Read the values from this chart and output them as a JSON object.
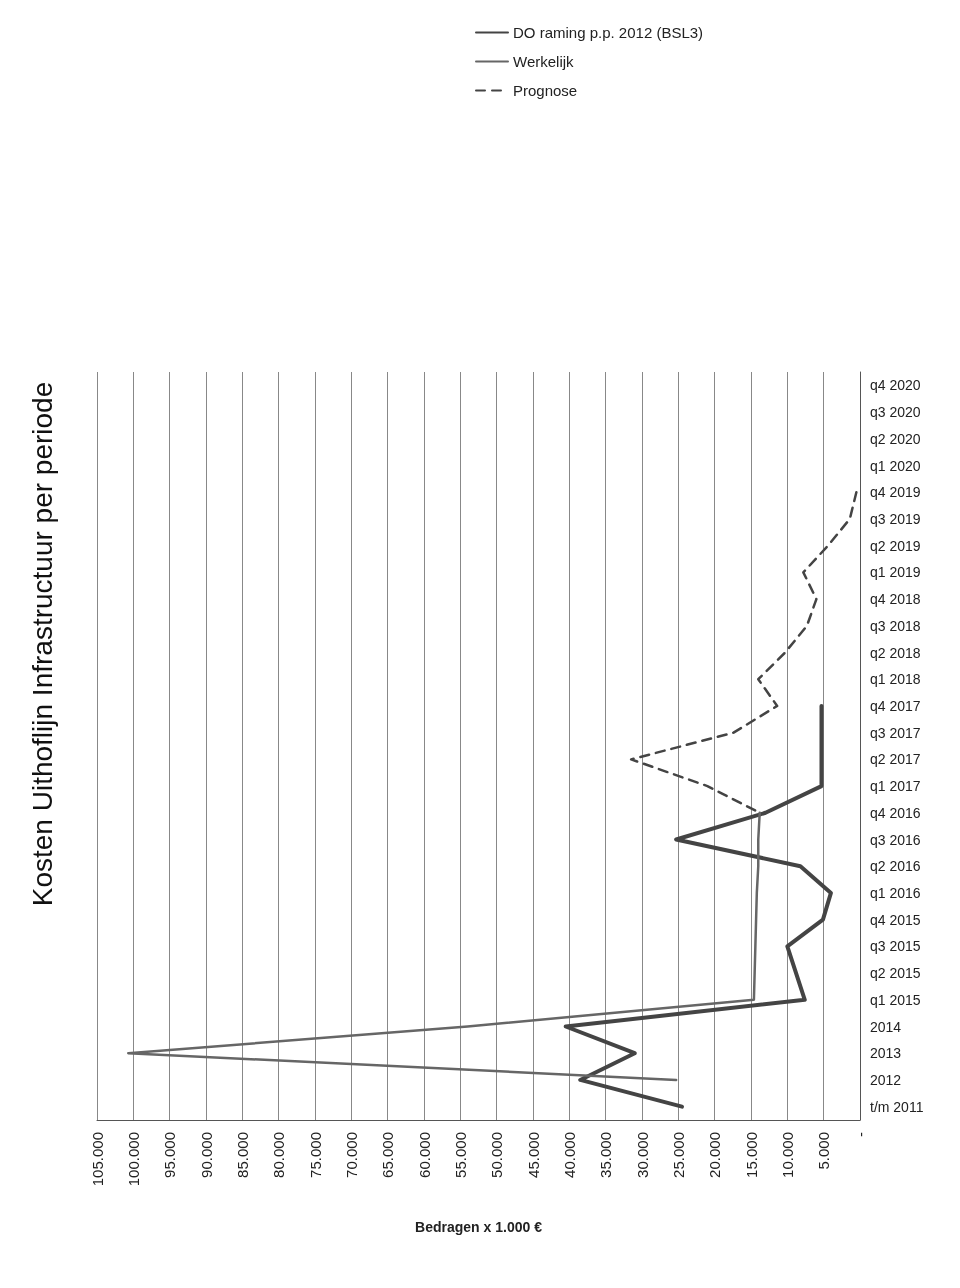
{
  "chart_data": {
    "type": "line",
    "orientation": "horizontal",
    "title": "Kosten Uithoflijn Infrastructuur per periode",
    "xlabel": "Bedragen x 1.000 €",
    "categories": [
      "q4 2020",
      "q3 2020",
      "q2 2020",
      "q1 2020",
      "q4 2019",
      "q3 2019",
      "q2 2019",
      "q1 2019",
      "q4 2018",
      "q3 2018",
      "q2 2018",
      "q1 2018",
      "q4 2017",
      "q3 2017",
      "q2 2017",
      "q1 2017",
      "q4 2016",
      "q3 2016",
      "q2 2016",
      "q1 2016",
      "q4 2015",
      "q3 2015",
      "q2 2015",
      "q1 2015",
      "2014",
      "2013",
      "2012",
      "t/m 2011"
    ],
    "series": [
      {
        "name": "DO raming p.p. 2012 (BSL3)",
        "color": "#444444",
        "line_style": "solid",
        "values": [
          null,
          null,
          null,
          null,
          null,
          null,
          null,
          null,
          null,
          null,
          null,
          null,
          5300,
          5300,
          5300,
          5300,
          13000,
          25300,
          8200,
          4000,
          5100,
          10000,
          8800,
          7600,
          40500,
          31000,
          38500,
          24500
        ]
      },
      {
        "name": "Werkelijk",
        "color": "#666666",
        "line_style": "solid",
        "values": [
          null,
          null,
          null,
          null,
          null,
          null,
          null,
          null,
          null,
          null,
          null,
          null,
          null,
          null,
          null,
          null,
          13800,
          14000,
          14000,
          14200,
          14300,
          14400,
          14500,
          14600,
          54000,
          100700,
          25300,
          null
        ]
      },
      {
        "name": "Prognose",
        "color": "#444444",
        "line_style": "dashed",
        "values": [
          null,
          null,
          null,
          null,
          500,
          1400,
          4400,
          7800,
          6000,
          7300,
          10300,
          14000,
          11400,
          17400,
          31500,
          21000,
          13800,
          null,
          null,
          null,
          null,
          null,
          null,
          null,
          null,
          null,
          null,
          null
        ]
      }
    ],
    "xlim": [
      105000,
      0
    ],
    "xticks": [
      {
        "value": 105000,
        "label": "105.000"
      },
      {
        "value": 100000,
        "label": "100.000"
      },
      {
        "value": 95000,
        "label": "95.000"
      },
      {
        "value": 90000,
        "label": "90.000"
      },
      {
        "value": 85000,
        "label": "85.000"
      },
      {
        "value": 80000,
        "label": "80.000"
      },
      {
        "value": 75000,
        "label": "75.000"
      },
      {
        "value": 70000,
        "label": "70.000"
      },
      {
        "value": 65000,
        "label": "65.000"
      },
      {
        "value": 60000,
        "label": "60.000"
      },
      {
        "value": 55000,
        "label": "55.000"
      },
      {
        "value": 50000,
        "label": "50.000"
      },
      {
        "value": 45000,
        "label": "45.000"
      },
      {
        "value": 40000,
        "label": "40.000"
      },
      {
        "value": 35000,
        "label": "35.000"
      },
      {
        "value": 30000,
        "label": "30.000"
      },
      {
        "value": 25000,
        "label": "25.000"
      },
      {
        "value": 20000,
        "label": "20.000"
      },
      {
        "value": 15000,
        "label": "15.000"
      },
      {
        "value": 10000,
        "label": "10.000"
      },
      {
        "value": 5000,
        "label": "5.000"
      },
      {
        "value": 0,
        "label": "-"
      }
    ],
    "grid": "x",
    "legend": "top right",
    "marker": "none"
  }
}
